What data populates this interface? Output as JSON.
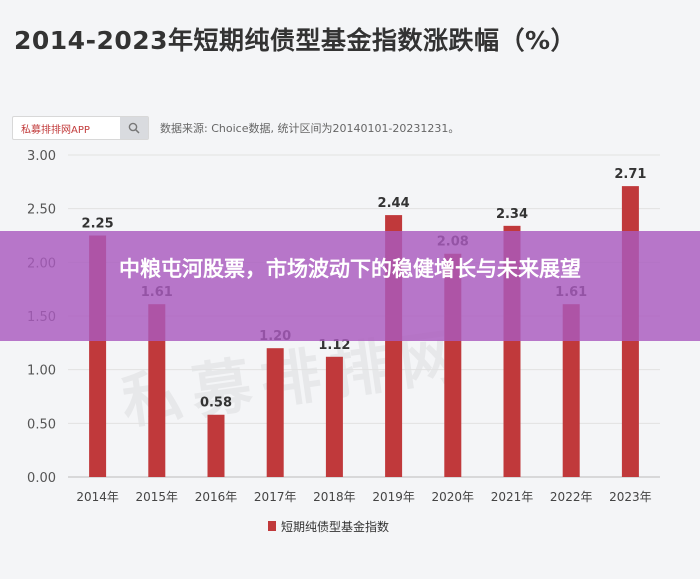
{
  "header": {
    "title": "2014-2023年短期纯债型基金指数涨跌幅（%）",
    "search_brand": "私募排排网APP",
    "source_note": "数据来源: Choice数据, 统计区间为20140101-20231231。"
  },
  "banner": {
    "title": "中粮屯河股票，市场波动下的稳健增长与未来展望"
  },
  "watermark": "私募排排网",
  "chart_data": {
    "type": "bar",
    "title": "2014-2023年短期纯债型基金指数涨跌幅（%）",
    "categories": [
      "2014年",
      "2015年",
      "2016年",
      "2017年",
      "2018年",
      "2019年",
      "2020年",
      "2021年",
      "2022年",
      "2023年"
    ],
    "series": [
      {
        "name": "短期纯债型基金指数",
        "values": [
          2.25,
          1.61,
          0.58,
          1.2,
          1.12,
          2.44,
          2.08,
          2.34,
          1.61,
          2.71
        ]
      }
    ],
    "value_labels": [
      "2.25",
      "1.61",
      "0.58",
      "1.20",
      "1.12",
      "2.44",
      "2.08",
      "2.34",
      "1.61",
      "2.71"
    ],
    "yticks": [
      "0.00",
      "0.50",
      "1.00",
      "1.50",
      "2.00",
      "2.50",
      "3.00"
    ],
    "ylim": [
      0,
      3
    ],
    "xlabel": "",
    "ylabel": "",
    "legend": "bottom",
    "bar_color": "#c0393b"
  }
}
